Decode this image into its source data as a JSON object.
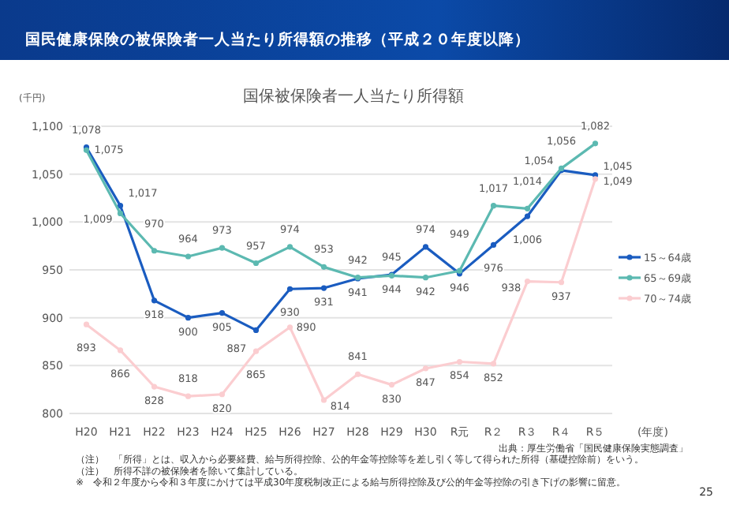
{
  "chart_data": {
    "type": "line",
    "title": "国民健康保険の被保険者一人当たり所得額の推移（平成２０年度以降）",
    "subtitle": "国保被保険者一人当たり所得額",
    "ylabel": "(千円)",
    "xlabel": "(年度)",
    "categories": [
      "H20",
      "H21",
      "H22",
      "H23",
      "H24",
      "H25",
      "H26",
      "H27",
      "H28",
      "H29",
      "H30",
      "R元",
      "R２",
      "R３",
      "R４",
      "R５"
    ],
    "series": [
      {
        "name": "15～64歳",
        "color": "#1a5cc0",
        "values": [
          1078,
          1017,
          918,
          900,
          905,
          887,
          930,
          931,
          941,
          945,
          974,
          946,
          976,
          1006,
          1054,
          1049
        ],
        "value_labels": [
          "1,078",
          "1,017",
          "918",
          "900",
          "905",
          "887",
          "930",
          "931",
          "941",
          "945",
          "974",
          "946",
          "976",
          "1,006",
          "1,054",
          "1,049"
        ]
      },
      {
        "name": "65～69歳",
        "color": "#5cb9b1",
        "values": [
          1075,
          1009,
          970,
          964,
          973,
          957,
          974,
          953,
          942,
          944,
          942,
          949,
          1017,
          1014,
          1056,
          1082
        ],
        "value_labels": [
          "1,075",
          "1,009",
          "970",
          "964",
          "973",
          "957",
          "974",
          "953",
          "942",
          "944",
          "942",
          "949",
          "1,017",
          "1,014",
          "1,056",
          "1,082"
        ]
      },
      {
        "name": "70～74歳",
        "color": "#fbcdd0",
        "values": [
          893,
          866,
          828,
          818,
          820,
          865,
          890,
          814,
          841,
          830,
          847,
          854,
          852,
          938,
          937,
          1045
        ],
        "value_labels": [
          "893",
          "866",
          "828",
          "818",
          "820",
          "865",
          "890",
          "814",
          "841",
          "830",
          "847",
          "854",
          "852",
          "938",
          "937",
          "1,045"
        ]
      }
    ],
    "ylim": [
      800,
      1100
    ],
    "yticks": [
      {
        "value": 800,
        "label": "800"
      },
      {
        "value": 850,
        "label": "850"
      },
      {
        "value": 900,
        "label": "900"
      },
      {
        "value": 950,
        "label": "950"
      },
      {
        "value": 1000,
        "label": "1,000"
      },
      {
        "value": 1050,
        "label": "1,050"
      },
      {
        "value": 1100,
        "label": "1,100"
      }
    ],
    "grid": "y",
    "legend": "right",
    "marker": "circle",
    "line_style": "solid",
    "annotations": [
      "出典：厚生労働省「国民健康保険実態調査」",
      "（注）　「所得」とは、収入から必要経費、給与所得控除、公的年金等控除等を差し引く等して得られた所得（基礎控除前）をいう。",
      "（注）　所得不詳の被保険者を除いて集計している。",
      "※　令和２年度から令和３年度にかけては平成30年度税制改正による給与所得控除及び公的年金等控除の引き下げの影響に留意。",
      "25"
    ]
  }
}
